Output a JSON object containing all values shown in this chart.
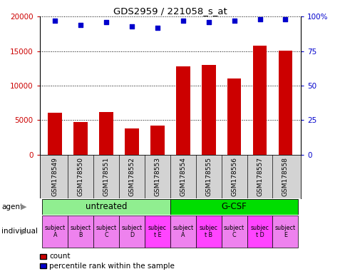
{
  "title": "GDS2959 / 221058_s_at",
  "samples": [
    "GSM178549",
    "GSM178550",
    "GSM178551",
    "GSM178552",
    "GSM178553",
    "GSM178554",
    "GSM178555",
    "GSM178556",
    "GSM178557",
    "GSM178558"
  ],
  "counts": [
    6100,
    4700,
    6200,
    3800,
    4200,
    12800,
    13000,
    11000,
    15800,
    15100
  ],
  "percentile_ranks": [
    97,
    94,
    96,
    93,
    92,
    97,
    96,
    97,
    98,
    98
  ],
  "agent_groups": [
    {
      "label": "untreated",
      "start": 0,
      "end": 4,
      "color": "#90EE90"
    },
    {
      "label": "G-CSF",
      "start": 5,
      "end": 9,
      "color": "#00DD00"
    }
  ],
  "individual_labels": [
    "subject\nA",
    "subject\nB",
    "subject\nC",
    "subject\nD",
    "subjec\nt E",
    "subject\nA",
    "subjec\nt B",
    "subject\nC",
    "subjec\nt D",
    "subject\nE"
  ],
  "individual_highlight": [
    4,
    6,
    8
  ],
  "bar_color": "#CC0000",
  "dot_color": "#0000CC",
  "ylim": [
    0,
    20000
  ],
  "yticks_left": [
    0,
    5000,
    10000,
    15000,
    20000
  ],
  "ytick_labels_left": [
    "0",
    "5000",
    "10000",
    "15000",
    "20000"
  ],
  "yticks_right": [
    0,
    25,
    50,
    75,
    100
  ],
  "ytick_labels_right": [
    "0",
    "25",
    "50",
    "75",
    "100%"
  ],
  "background_color": "#ffffff",
  "label_bg_color": "#d3d3d3",
  "individual_color_normal": "#EE82EE",
  "individual_color_highlight": "#FF44FF"
}
